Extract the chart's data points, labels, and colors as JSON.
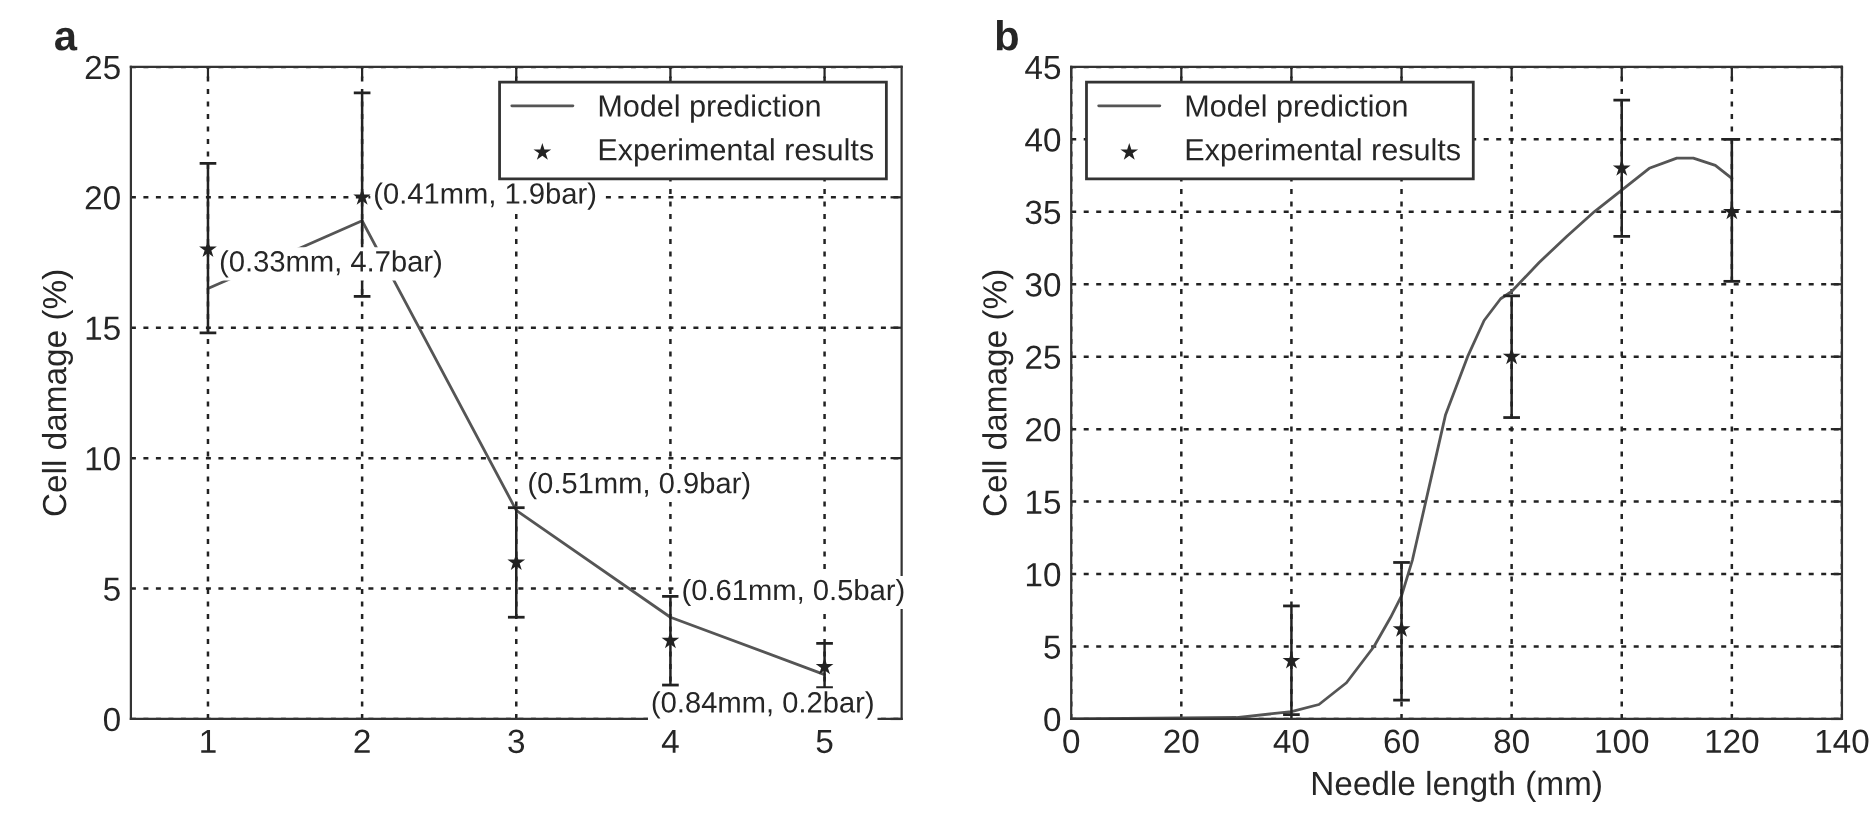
{
  "chart_data": [
    {
      "type": "line",
      "title": "a",
      "ylabel": "Cell damage (%)",
      "xlim": [
        0.5,
        5.5
      ],
      "xticks": [
        1,
        2,
        3,
        4,
        5
      ],
      "ylim": [
        0,
        25
      ],
      "yticks": [
        0,
        5,
        10,
        15,
        20,
        25
      ],
      "grid": true,
      "legend": "top right",
      "series": [
        {
          "name": "Model prediction",
          "color": "#555555",
          "marker": "none",
          "line_style": "solid",
          "x": [
            1,
            2,
            3,
            4,
            5
          ],
          "values": [
            16.5,
            19.1,
            8.0,
            3.9,
            1.7
          ]
        },
        {
          "name": "Experimental results",
          "type": "scatter",
          "color": "#222222",
          "marker": "star",
          "x": [
            1,
            2,
            3,
            4,
            5
          ],
          "values": [
            18,
            20,
            6,
            3,
            2
          ],
          "errors": [
            [
              14.8,
              21.3
            ],
            [
              16.2,
              24
            ],
            [
              3.9,
              8.1
            ],
            [
              1.3,
              4.7
            ],
            [
              1.2,
              2.9
            ]
          ]
        }
      ],
      "annotations": [
        {
          "text": "(0.33mm, 4.7bar)",
          "x": 1,
          "y": 16.5
        },
        {
          "text": "(0.41mm, 1.9bar)",
          "x": 2,
          "y": 19.1
        },
        {
          "text": "(0.51mm, 0.9bar)",
          "x": 3,
          "y": 8.0
        },
        {
          "text": "(0.61mm, 0.5bar)",
          "x": 4,
          "y": 3.9
        },
        {
          "text": "(0.84mm, 0.2bar)",
          "x": 5,
          "y": 1.7
        }
      ]
    },
    {
      "type": "line",
      "title": "b",
      "xlabel": "Needle length (mm)",
      "ylabel": "Cell damage (%)",
      "xlim": [
        0,
        140
      ],
      "xticks": [
        0,
        20,
        40,
        60,
        80,
        100,
        120,
        140
      ],
      "ylim": [
        0,
        45
      ],
      "yticks": [
        0,
        5,
        10,
        15,
        20,
        25,
        30,
        35,
        40,
        45
      ],
      "grid": true,
      "legend": "top left",
      "series": [
        {
          "name": "Model prediction",
          "color": "#555555",
          "marker": "none",
          "line_style": "solid",
          "x": [
            0,
            30,
            40,
            45,
            50,
            55,
            58,
            60,
            62,
            65,
            68,
            72,
            75,
            78,
            80,
            85,
            90,
            95,
            100,
            105,
            110,
            113,
            117,
            120
          ],
          "values": [
            0,
            0.1,
            0.5,
            1.0,
            2.5,
            5,
            7,
            8.5,
            11,
            16,
            21,
            25,
            27.5,
            29,
            29.5,
            31.5,
            33.3,
            35,
            36.5,
            38,
            38.7,
            38.7,
            38.2,
            37.3
          ]
        },
        {
          "name": "Experimental results",
          "type": "scatter",
          "color": "#222222",
          "marker": "star",
          "x": [
            40,
            60,
            80,
            100,
            120
          ],
          "values": [
            4,
            6.2,
            25,
            38,
            35
          ],
          "errors": [
            [
              0.3,
              7.8
            ],
            [
              1.3,
              10.8
            ],
            [
              20.8,
              29.2
            ],
            [
              33.3,
              42.7
            ],
            [
              30.2,
              40
            ]
          ]
        }
      ]
    }
  ]
}
